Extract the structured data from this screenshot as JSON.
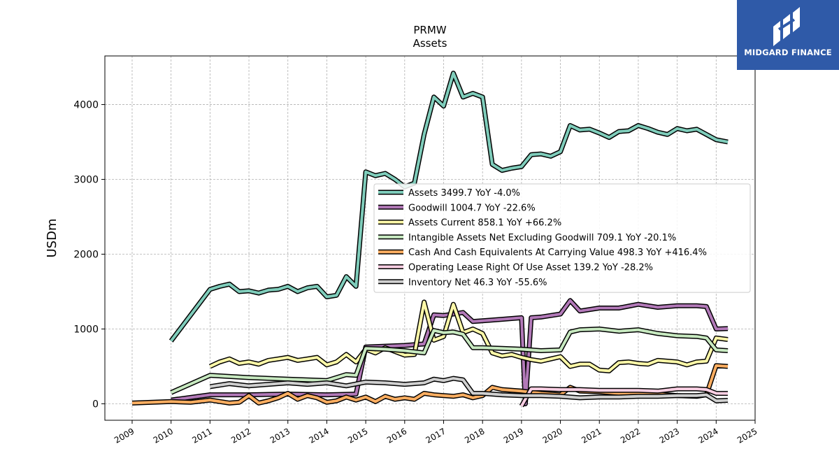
{
  "chart_data": {
    "type": "line",
    "title": "PRMW",
    "subtitle": "Assets",
    "xlabel": "",
    "ylabel": "USDm",
    "xlim": [
      2008.3,
      2025.0
    ],
    "ylim": [
      -220,
      4650
    ],
    "x_ticks": [
      "2009",
      "2010",
      "2011",
      "2012",
      "2013",
      "2014",
      "2015",
      "2016",
      "2017",
      "2018",
      "2019",
      "2020",
      "2021",
      "2022",
      "2023",
      "2024",
      "2025"
    ],
    "y_ticks": [
      0,
      1000,
      2000,
      3000,
      4000
    ],
    "grid": true,
    "legend_position": "center-right",
    "series": [
      {
        "name": "Assets",
        "legend_label": "Assets  3499.7 YoY -4.0%",
        "color": "#7fcdbb",
        "x": [
          2010.0,
          2011.0,
          2011.25,
          2011.5,
          2011.75,
          2012.0,
          2012.25,
          2012.5,
          2012.75,
          2013.0,
          2013.25,
          2013.5,
          2013.75,
          2014.0,
          2014.25,
          2014.5,
          2014.75,
          2015.0,
          2015.25,
          2015.5,
          2015.75,
          2016.0,
          2016.25,
          2016.5,
          2016.75,
          2017.0,
          2017.25,
          2017.5,
          2017.75,
          2018.0,
          2018.25,
          2018.5,
          2018.75,
          2019.0,
          2019.25,
          2019.5,
          2019.75,
          2020.0,
          2020.25,
          2020.5,
          2020.75,
          2021.0,
          2021.25,
          2021.5,
          2021.75,
          2022.0,
          2022.25,
          2022.5,
          2022.75,
          2023.0,
          2023.25,
          2023.5,
          2023.75,
          2024.0,
          2024.3
        ],
        "y": [
          840,
          1530,
          1570,
          1600,
          1500,
          1510,
          1480,
          1520,
          1530,
          1570,
          1500,
          1550,
          1570,
          1430,
          1450,
          1700,
          1570,
          3100,
          3050,
          3080,
          3000,
          2900,
          2950,
          3600,
          4100,
          3980,
          4420,
          4100,
          4150,
          4100,
          3200,
          3120,
          3150,
          3170,
          3330,
          3340,
          3310,
          3370,
          3720,
          3660,
          3670,
          3620,
          3560,
          3640,
          3650,
          3720,
          3680,
          3630,
          3600,
          3680,
          3650,
          3670,
          3600,
          3530,
          3500
        ]
      },
      {
        "name": "Goodwill",
        "legend_label": "Goodwill  1004.7 YoY -22.6%",
        "color": "#b279b8",
        "x": [
          2010.0,
          2011.0,
          2012.0,
          2013.0,
          2014.0,
          2014.75,
          2015.0,
          2015.5,
          2016.0,
          2016.5,
          2016.75,
          2017.0,
          2017.25,
          2017.5,
          2017.75,
          2018.0,
          2018.5,
          2019.0,
          2019.1,
          2019.25,
          2019.5,
          2020.0,
          2020.25,
          2020.5,
          2021.0,
          2021.5,
          2022.0,
          2022.5,
          2023.0,
          2023.5,
          2023.75,
          2024.0,
          2024.3
        ],
        "y": [
          50,
          120,
          120,
          130,
          120,
          130,
          760,
          770,
          780,
          800,
          1190,
          1180,
          1200,
          1220,
          1100,
          1110,
          1130,
          1150,
          0,
          1150,
          1160,
          1200,
          1380,
          1240,
          1280,
          1280,
          1330,
          1290,
          1310,
          1310,
          1300,
          1000,
          1005
        ]
      },
      {
        "name": "Assets Current",
        "legend_label": "Assets Current  858.1 YoY +66.2%",
        "color": "#fdf8a8",
        "x": [
          2011.0,
          2011.25,
          2011.5,
          2011.75,
          2012.0,
          2012.25,
          2012.5,
          2012.75,
          2013.0,
          2013.25,
          2013.5,
          2013.75,
          2014.0,
          2014.25,
          2014.5,
          2014.75,
          2015.0,
          2015.25,
          2015.5,
          2015.75,
          2016.0,
          2016.25,
          2016.5,
          2016.75,
          2017.0,
          2017.25,
          2017.5,
          2017.75,
          2018.0,
          2018.25,
          2018.5,
          2018.75,
          2019.0,
          2019.25,
          2019.5,
          2019.75,
          2020.0,
          2020.25,
          2020.5,
          2020.75,
          2021.0,
          2021.25,
          2021.5,
          2021.75,
          2022.0,
          2022.25,
          2022.5,
          2022.75,
          2023.0,
          2023.25,
          2023.5,
          2023.75,
          2024.0,
          2024.3
        ],
        "y": [
          500,
          560,
          600,
          540,
          560,
          530,
          580,
          600,
          620,
          580,
          600,
          620,
          520,
          560,
          660,
          560,
          730,
          680,
          750,
          700,
          650,
          660,
          1360,
          850,
          900,
          1330,
          950,
          1000,
          940,
          680,
          640,
          660,
          620,
          590,
          570,
          600,
          630,
          500,
          530,
          530,
          450,
          440,
          550,
          560,
          540,
          530,
          580,
          570,
          560,
          520,
          560,
          570,
          880,
          860
        ]
      },
      {
        "name": "Intangible Assets Net Excluding Goodwill",
        "legend_label": "Intangible Assets Net Excluding Goodwill  709.1 YoY -20.1%",
        "color": "#c7e9c0",
        "x": [
          2010.0,
          2011.0,
          2012.0,
          2013.0,
          2014.0,
          2014.5,
          2014.75,
          2015.0,
          2015.5,
          2016.0,
          2016.5,
          2016.75,
          2017.0,
          2017.25,
          2017.5,
          2017.75,
          2018.0,
          2018.5,
          2019.0,
          2019.5,
          2020.0,
          2020.25,
          2020.5,
          2021.0,
          2021.5,
          2022.0,
          2022.5,
          2023.0,
          2023.5,
          2023.75,
          2024.0,
          2024.3
        ],
        "y": [
          150,
          380,
          350,
          330,
          310,
          390,
          380,
          740,
          730,
          710,
          680,
          980,
          950,
          960,
          930,
          750,
          750,
          740,
          730,
          710,
          720,
          960,
          990,
          1000,
          970,
          990,
          940,
          910,
          900,
          880,
          720,
          710
        ]
      },
      {
        "name": "Cash And Cash Equivalents At Carrying Value",
        "legend_label": "Cash And Cash Equivalents At Carrying Value  498.3 YoY +416.4%",
        "color": "#fdae61",
        "x": [
          2009.0,
          2010.0,
          2010.5,
          2011.0,
          2011.5,
          2011.75,
          2012.0,
          2012.25,
          2012.5,
          2012.75,
          2013.0,
          2013.25,
          2013.5,
          2013.75,
          2014.0,
          2014.25,
          2014.5,
          2014.75,
          2015.0,
          2015.25,
          2015.5,
          2015.75,
          2016.0,
          2016.25,
          2016.5,
          2016.75,
          2017.0,
          2017.25,
          2017.5,
          2017.75,
          2018.0,
          2018.25,
          2018.5,
          2019.0,
          2019.5,
          2020.0,
          2020.25,
          2020.5,
          2021.0,
          2021.5,
          2022.0,
          2022.5,
          2023.0,
          2023.5,
          2023.75,
          2024.0,
          2024.3
        ],
        "y": [
          10,
          30,
          20,
          50,
          10,
          20,
          110,
          10,
          40,
          80,
          140,
          60,
          110,
          80,
          20,
          40,
          90,
          50,
          90,
          30,
          100,
          60,
          80,
          60,
          140,
          120,
          110,
          100,
          120,
          80,
          110,
          220,
          190,
          170,
          140,
          120,
          220,
          170,
          160,
          140,
          150,
          130,
          110,
          100,
          120,
          510,
          500
        ]
      },
      {
        "name": "Operating Lease Right Of Use Asset",
        "legend_label": "Operating Lease Right Of Use Asset  139.2 YoY -28.2%",
        "color": "#fbcfe3",
        "x": [
          2019.0,
          2019.25,
          2019.5,
          2020.0,
          2020.5,
          2021.0,
          2021.5,
          2022.0,
          2022.5,
          2023.0,
          2023.5,
          2023.75,
          2024.0,
          2024.3
        ],
        "y": [
          -30,
          200,
          200,
          190,
          190,
          180,
          180,
          180,
          170,
          200,
          200,
          190,
          140,
          139
        ]
      },
      {
        "name": "Inventory Net",
        "legend_label": "Inventory Net  46.3 YoY -55.6%",
        "color": "#cfcfcf",
        "x": [
          2011.0,
          2011.5,
          2012.0,
          2012.5,
          2013.0,
          2013.5,
          2014.0,
          2014.5,
          2015.0,
          2015.5,
          2016.0,
          2016.5,
          2016.75,
          2017.0,
          2017.25,
          2017.5,
          2017.75,
          2018.0,
          2018.5,
          2019.0,
          2019.5,
          2020.0,
          2020.5,
          2021.0,
          2021.5,
          2022.0,
          2022.5,
          2023.0,
          2023.5,
          2023.75,
          2024.0,
          2024.3
        ],
        "y": [
          230,
          270,
          240,
          260,
          280,
          260,
          280,
          240,
          290,
          280,
          260,
          280,
          330,
          310,
          340,
          320,
          140,
          140,
          120,
          110,
          110,
          100,
          80,
          90,
          90,
          100,
          100,
          110,
          110,
          120,
          40,
          46
        ]
      }
    ]
  },
  "logo": {
    "text": "MIDGARD FINANCE"
  }
}
